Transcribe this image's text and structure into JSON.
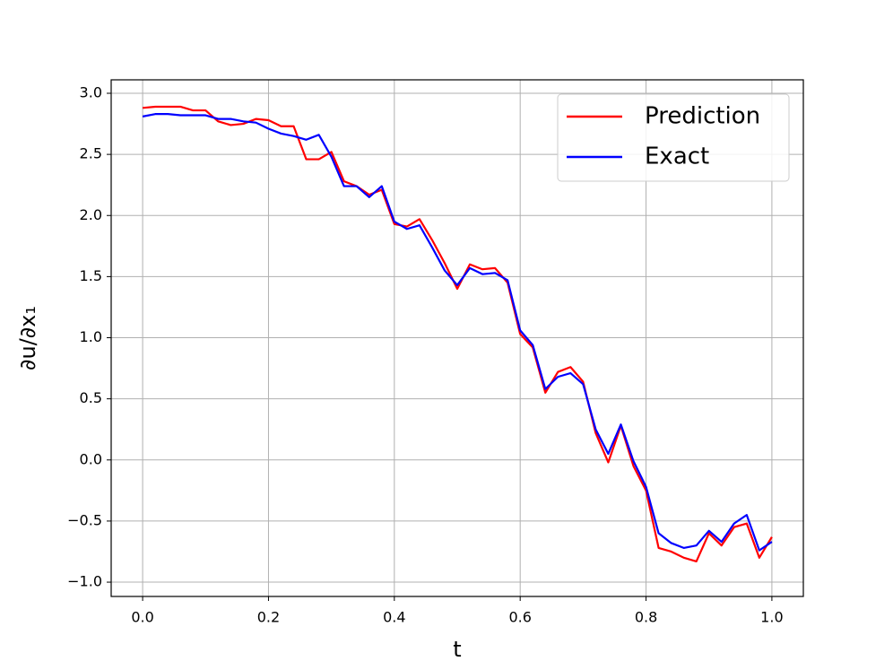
{
  "chart_data": {
    "type": "line",
    "x_label": "t",
    "y_label": "∂u/∂x₁",
    "x": [
      0,
      0.02,
      0.04,
      0.06,
      0.08,
      0.1,
      0.12,
      0.14,
      0.16,
      0.18,
      0.2,
      0.22,
      0.24,
      0.26,
      0.28,
      0.3,
      0.32,
      0.34,
      0.36,
      0.38,
      0.4,
      0.42,
      0.44,
      0.46,
      0.48,
      0.5,
      0.52,
      0.54,
      0.56,
      0.58,
      0.6,
      0.62,
      0.64,
      0.66,
      0.68,
      0.7,
      0.72,
      0.74,
      0.76,
      0.78,
      0.8,
      0.82,
      0.84,
      0.86,
      0.88,
      0.9,
      0.92,
      0.94,
      0.96,
      0.98,
      1
    ],
    "series": [
      {
        "name": "Prediction",
        "color": "#ff0000",
        "values": [
          2.88,
          2.89,
          2.89,
          2.89,
          2.86,
          2.86,
          2.77,
          2.74,
          2.75,
          2.79,
          2.78,
          2.73,
          2.73,
          2.46,
          2.46,
          2.52,
          2.28,
          2.24,
          2.17,
          2.21,
          1.93,
          1.91,
          1.97,
          1.8,
          1.61,
          1.4,
          1.6,
          1.56,
          1.57,
          1.45,
          1.03,
          0.92,
          0.55,
          0.72,
          0.76,
          0.64,
          0.22,
          -0.02,
          0.28,
          -0.05,
          -0.25,
          -0.72,
          -0.75,
          -0.8,
          -0.83,
          -0.6,
          -0.7,
          -0.55,
          -0.52,
          -0.8,
          -0.63
        ]
      },
      {
        "name": "Exact",
        "color": "#0000ff",
        "values": [
          2.81,
          2.83,
          2.83,
          2.82,
          2.82,
          2.82,
          2.79,
          2.79,
          2.77,
          2.76,
          2.71,
          2.67,
          2.65,
          2.62,
          2.66,
          2.48,
          2.24,
          2.24,
          2.15,
          2.24,
          1.95,
          1.89,
          1.92,
          1.74,
          1.55,
          1.43,
          1.57,
          1.52,
          1.53,
          1.47,
          1.06,
          0.94,
          0.58,
          0.68,
          0.71,
          0.62,
          0.25,
          0.05,
          0.29,
          -0.01,
          -0.22,
          -0.6,
          -0.68,
          -0.72,
          -0.7,
          -0.58,
          -0.67,
          -0.52,
          -0.45,
          -0.74,
          -0.67
        ]
      }
    ],
    "xlim": [
      -0.05,
      1.05
    ],
    "ylim": [
      -1.117,
      3.11
    ],
    "xticks": [
      {
        "value": 0,
        "label": "0.0"
      },
      0.2,
      0.4,
      0.6,
      0.8,
      {
        "value": 1,
        "label": "1.0"
      }
    ],
    "yticks": [
      {
        "value": -1,
        "label": "−1.0"
      },
      {
        "value": -0.5,
        "label": "−0.5"
      },
      {
        "value": 0,
        "label": "0.0"
      },
      0.5,
      {
        "value": 1,
        "label": "1.0"
      },
      1.5,
      {
        "value": 2,
        "label": "2.0"
      },
      2.5,
      {
        "value": 3,
        "label": "3.0"
      }
    ],
    "grid": true,
    "legend": "upper right"
  }
}
